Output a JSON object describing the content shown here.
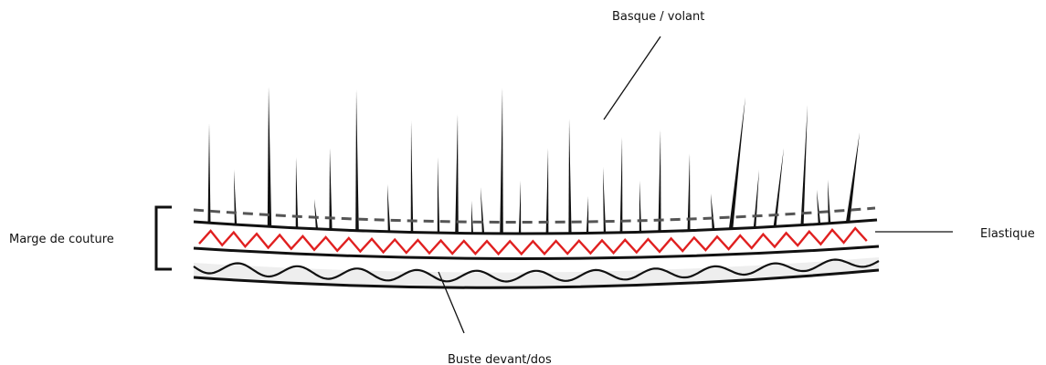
{
  "labels": {
    "basque": "Basque / volant",
    "marge": "Marge de couture",
    "elastique": "Elastique",
    "buste": "Buste devant/dos"
  },
  "colors": {
    "ink": "#111111",
    "elastic": "#e02020",
    "dashed": "#555555",
    "bust_fill": "#eeeeee"
  }
}
